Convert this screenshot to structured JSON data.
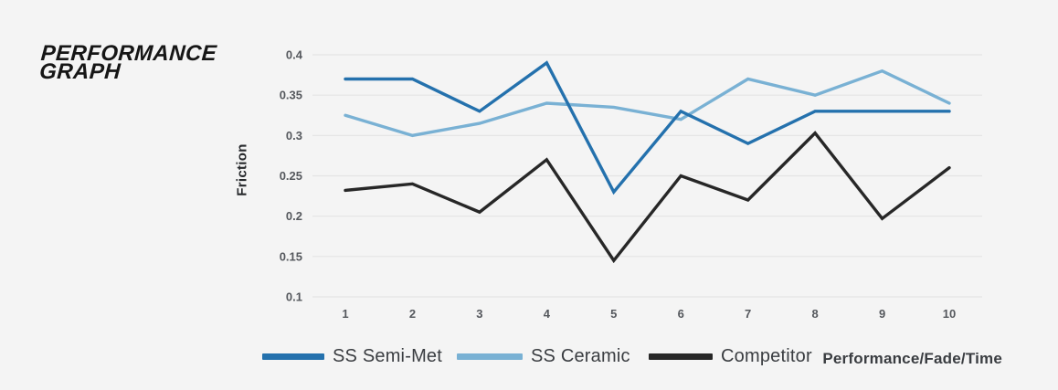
{
  "title": {
    "line1": "PERFORMANCE",
    "line2": "GRAPH"
  },
  "footer": {
    "caption": "Performance/Fade/Time"
  },
  "colors": {
    "background": "#f4f4f4",
    "gridline": "#e4e4e4",
    "tick_label": "#55585d",
    "title_text": "#161616",
    "legend_text": "#3a3d41"
  },
  "chart_data": {
    "type": "line",
    "title": "Performance Graph",
    "xlabel": "",
    "ylabel": "Friction",
    "x": [
      1,
      2,
      3,
      4,
      5,
      6,
      7,
      8,
      9,
      10
    ],
    "xticks": [
      1,
      2,
      3,
      4,
      5,
      6,
      7,
      8,
      9,
      10
    ],
    "ylim": [
      0.1,
      0.4
    ],
    "yticks": [
      0.4,
      0.35,
      0.3,
      0.25,
      0.2,
      0.15,
      0.1
    ],
    "grid": "horizontal",
    "legend_position": "bottom",
    "series": [
      {
        "name": "SS Semi-Met",
        "color": "#2471ad",
        "values": [
          0.37,
          0.37,
          0.33,
          0.39,
          0.23,
          0.33,
          0.29,
          0.33,
          0.33,
          0.33
        ]
      },
      {
        "name": "SS Ceramic",
        "color": "#79b1d4",
        "values": [
          0.325,
          0.3,
          0.315,
          0.34,
          0.335,
          0.32,
          0.37,
          0.35,
          0.38,
          0.34
        ]
      },
      {
        "name": "Competitor",
        "color": "#272727",
        "values": [
          0.232,
          0.24,
          0.205,
          0.27,
          0.145,
          0.25,
          0.22,
          0.303,
          0.197,
          0.26
        ]
      }
    ]
  }
}
